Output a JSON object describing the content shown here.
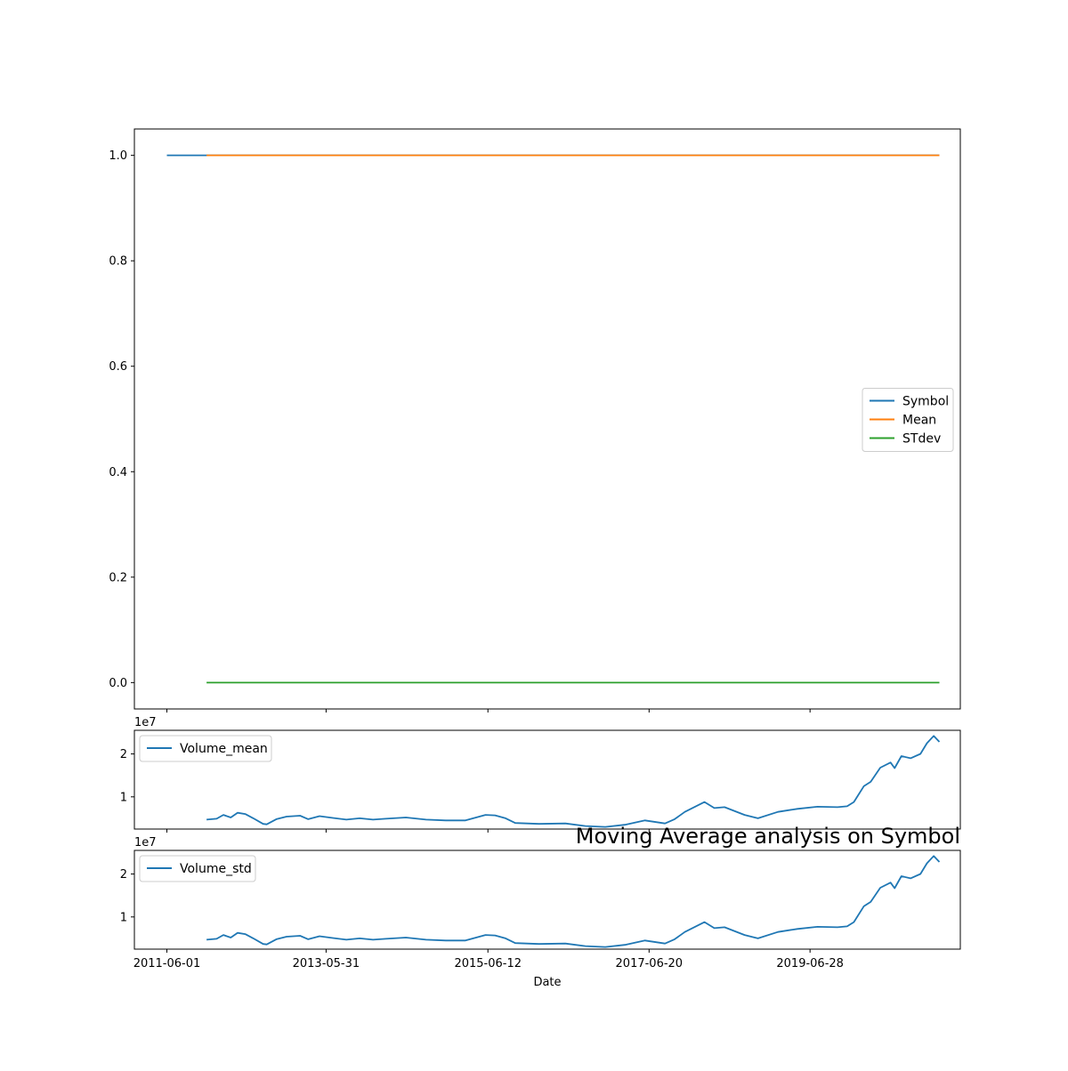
{
  "chart_data": [
    {
      "type": "line",
      "title": "",
      "xlabel": "",
      "ylabel": "",
      "ylim": [
        -0.05,
        1.05
      ],
      "xlim": [
        "2011-01-03",
        "2021-05-17"
      ],
      "y_ticks": [
        "0.0",
        "0.2",
        "0.4",
        "0.6",
        "0.8",
        "1.0"
      ],
      "y_tick_values": [
        0.0,
        0.2,
        0.4,
        0.6,
        0.8,
        1.0
      ],
      "x_ticks": [
        "2011-06-01",
        "2013-05-31",
        "2015-06-12",
        "2017-06-20",
        "2019-06-28"
      ],
      "legend_placement": "center-right",
      "grid": false,
      "series": [
        {
          "name": "Symbol",
          "color": "#1f77b4",
          "points": [
            [
              "2011-06-01",
              1.0
            ],
            [
              "2021-02-10",
              1.0
            ]
          ]
        },
        {
          "name": "Mean",
          "color": "#ff7f0e",
          "points": [
            [
              "2011-11-30",
              1.0
            ],
            [
              "2021-02-10",
              1.0
            ]
          ]
        },
        {
          "name": "STdev",
          "color": "#2ca02c",
          "points": [
            [
              "2011-11-30",
              0.0
            ],
            [
              "2021-02-10",
              0.0
            ]
          ]
        }
      ]
    },
    {
      "type": "line",
      "title": "",
      "xlabel": "",
      "ylabel": "",
      "offset_label": "1e7",
      "ylim": [
        0.25,
        2.55
      ],
      "xlim": [
        "2011-01-03",
        "2021-05-17"
      ],
      "y_ticks": [
        "1",
        "2"
      ],
      "y_tick_values": [
        1,
        2
      ],
      "legend_placement": "upper-left",
      "grid": false,
      "series": [
        {
          "name": "Volume_mean",
          "color": "#1f77b4",
          "points": [
            [
              "2011-11-30",
              0.47
            ],
            [
              "2012-01-15",
              0.49
            ],
            [
              "2012-02-15",
              0.58
            ],
            [
              "2012-03-20",
              0.52
            ],
            [
              "2012-04-20",
              0.63
            ],
            [
              "2012-05-25",
              0.6
            ],
            [
              "2012-07-01",
              0.5
            ],
            [
              "2012-08-15",
              0.37
            ],
            [
              "2012-09-01",
              0.36
            ],
            [
              "2012-10-15",
              0.48
            ],
            [
              "2012-12-01",
              0.54
            ],
            [
              "2013-02-01",
              0.56
            ],
            [
              "2013-03-10",
              0.48
            ],
            [
              "2013-05-01",
              0.55
            ],
            [
              "2013-07-01",
              0.51
            ],
            [
              "2013-09-01",
              0.47
            ],
            [
              "2013-11-01",
              0.5
            ],
            [
              "2014-01-01",
              0.47
            ],
            [
              "2014-03-01",
              0.49
            ],
            [
              "2014-06-01",
              0.52
            ],
            [
              "2014-09-01",
              0.47
            ],
            [
              "2014-12-01",
              0.45
            ],
            [
              "2015-03-01",
              0.45
            ],
            [
              "2015-06-01",
              0.58
            ],
            [
              "2015-07-15",
              0.57
            ],
            [
              "2015-09-01",
              0.5
            ],
            [
              "2015-10-15",
              0.39
            ],
            [
              "2016-02-01",
              0.37
            ],
            [
              "2016-06-01",
              0.38
            ],
            [
              "2016-09-01",
              0.32
            ],
            [
              "2016-12-01",
              0.3
            ],
            [
              "2017-03-01",
              0.35
            ],
            [
              "2017-06-01",
              0.45
            ],
            [
              "2017-09-01",
              0.38
            ],
            [
              "2017-10-15",
              0.48
            ],
            [
              "2017-12-01",
              0.65
            ],
            [
              "2018-03-01",
              0.88
            ],
            [
              "2018-04-15",
              0.74
            ],
            [
              "2018-06-01",
              0.76
            ],
            [
              "2018-09-01",
              0.58
            ],
            [
              "2018-11-01",
              0.5
            ],
            [
              "2019-02-01",
              0.65
            ],
            [
              "2019-05-01",
              0.72
            ],
            [
              "2019-08-01",
              0.77
            ],
            [
              "2019-11-01",
              0.76
            ],
            [
              "2019-12-15",
              0.78
            ],
            [
              "2020-01-15",
              0.88
            ],
            [
              "2020-03-01",
              1.25
            ],
            [
              "2020-04-01",
              1.35
            ],
            [
              "2020-05-15",
              1.68
            ],
            [
              "2020-07-01",
              1.8
            ],
            [
              "2020-07-20",
              1.67
            ],
            [
              "2020-08-20",
              1.95
            ],
            [
              "2020-10-01",
              1.9
            ],
            [
              "2020-11-15",
              2.0
            ],
            [
              "2020-12-15",
              2.25
            ],
            [
              "2021-01-15",
              2.42
            ],
            [
              "2021-02-10",
              2.28
            ]
          ]
        }
      ]
    },
    {
      "type": "line",
      "title": "Moving Average analysis on Symbol",
      "xlabel": "Date",
      "ylabel": "",
      "offset_label": "1e7",
      "ylim": [
        0.25,
        2.55
      ],
      "xlim": [
        "2011-01-03",
        "2021-05-17"
      ],
      "y_ticks": [
        "1",
        "2"
      ],
      "y_tick_values": [
        1,
        2
      ],
      "x_ticks": [
        "2011-06-01",
        "2013-05-31",
        "2015-06-12",
        "2017-06-20",
        "2019-06-28"
      ],
      "legend_placement": "upper-left",
      "grid": false,
      "series": [
        {
          "name": "Volume_std",
          "color": "#1f77b4",
          "points": [
            [
              "2011-11-30",
              0.47
            ],
            [
              "2012-01-15",
              0.49
            ],
            [
              "2012-02-15",
              0.58
            ],
            [
              "2012-03-20",
              0.52
            ],
            [
              "2012-04-20",
              0.63
            ],
            [
              "2012-05-25",
              0.6
            ],
            [
              "2012-07-01",
              0.5
            ],
            [
              "2012-08-15",
              0.37
            ],
            [
              "2012-09-01",
              0.36
            ],
            [
              "2012-10-15",
              0.48
            ],
            [
              "2012-12-01",
              0.54
            ],
            [
              "2013-02-01",
              0.56
            ],
            [
              "2013-03-10",
              0.48
            ],
            [
              "2013-05-01",
              0.55
            ],
            [
              "2013-07-01",
              0.51
            ],
            [
              "2013-09-01",
              0.47
            ],
            [
              "2013-11-01",
              0.5
            ],
            [
              "2014-01-01",
              0.47
            ],
            [
              "2014-03-01",
              0.49
            ],
            [
              "2014-06-01",
              0.52
            ],
            [
              "2014-09-01",
              0.47
            ],
            [
              "2014-12-01",
              0.45
            ],
            [
              "2015-03-01",
              0.45
            ],
            [
              "2015-06-01",
              0.58
            ],
            [
              "2015-07-15",
              0.57
            ],
            [
              "2015-09-01",
              0.5
            ],
            [
              "2015-10-15",
              0.39
            ],
            [
              "2016-02-01",
              0.37
            ],
            [
              "2016-06-01",
              0.38
            ],
            [
              "2016-09-01",
              0.32
            ],
            [
              "2016-12-01",
              0.3
            ],
            [
              "2017-03-01",
              0.35
            ],
            [
              "2017-06-01",
              0.45
            ],
            [
              "2017-09-01",
              0.38
            ],
            [
              "2017-10-15",
              0.48
            ],
            [
              "2017-12-01",
              0.65
            ],
            [
              "2018-03-01",
              0.88
            ],
            [
              "2018-04-15",
              0.74
            ],
            [
              "2018-06-01",
              0.76
            ],
            [
              "2018-09-01",
              0.58
            ],
            [
              "2018-11-01",
              0.5
            ],
            [
              "2019-02-01",
              0.65
            ],
            [
              "2019-05-01",
              0.72
            ],
            [
              "2019-08-01",
              0.77
            ],
            [
              "2019-11-01",
              0.76
            ],
            [
              "2019-12-15",
              0.78
            ],
            [
              "2020-01-15",
              0.88
            ],
            [
              "2020-03-01",
              1.25
            ],
            [
              "2020-04-01",
              1.35
            ],
            [
              "2020-05-15",
              1.68
            ],
            [
              "2020-07-01",
              1.8
            ],
            [
              "2020-07-20",
              1.67
            ],
            [
              "2020-08-20",
              1.95
            ],
            [
              "2020-10-01",
              1.9
            ],
            [
              "2020-11-15",
              2.0
            ],
            [
              "2020-12-15",
              2.25
            ],
            [
              "2021-01-15",
              2.42
            ],
            [
              "2021-02-10",
              2.28
            ]
          ]
        }
      ]
    }
  ]
}
